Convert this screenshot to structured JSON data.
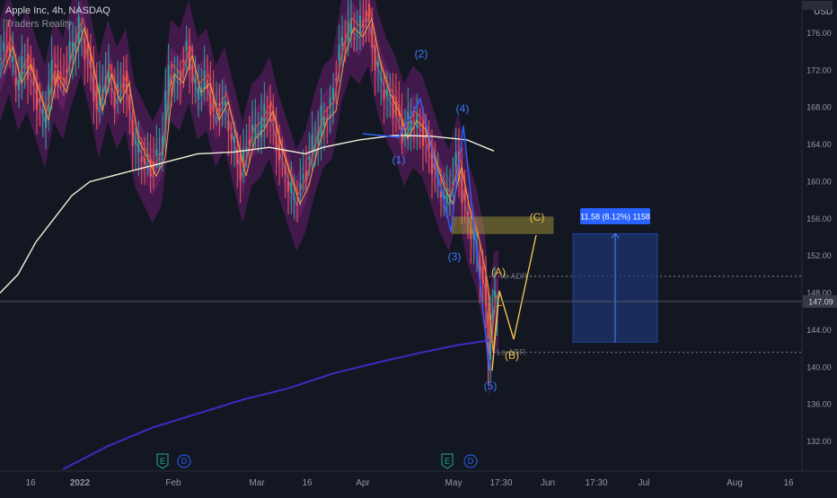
{
  "header": {
    "symbol_line": "Apple Inc, 4h, NASDAQ",
    "indicator": "Traders Reality"
  },
  "axis": {
    "currency": "USD"
  },
  "chart_data": {
    "type": "line",
    "title": "Apple Inc, 4h, NASDAQ",
    "xlabel": "",
    "ylabel": "",
    "ylim": [
      128.5,
      180.5
    ],
    "grid": false,
    "y_ticks": [
      132.0,
      136.0,
      140.0,
      144.0,
      148.0,
      152.0,
      156.0,
      160.0,
      164.0,
      168.0,
      172.0,
      176.0
    ],
    "x_ticks": [
      "16",
      "2022",
      "Feb",
      "Mar",
      "16",
      "Apr",
      "May",
      "17:30",
      "Jun",
      "17:30",
      "Jul",
      "Aug",
      "16"
    ],
    "last_price": "147.09",
    "series": [
      {
        "name": "",
        "note": "price close (approx.)",
        "values": [
          [
            0,
            172
          ],
          [
            10,
            175
          ],
          [
            20,
            171
          ],
          [
            30,
            173
          ],
          [
            40,
            170
          ],
          [
            50,
            167
          ],
          [
            60,
            172
          ],
          [
            70,
            170
          ],
          [
            80,
            174
          ],
          [
            90,
            177
          ],
          [
            100,
            173
          ],
          [
            110,
            168
          ],
          [
            120,
            172
          ],
          [
            130,
            169
          ],
          [
            140,
            171
          ],
          [
            150,
            165
          ],
          [
            160,
            163
          ],
          [
            170,
            161
          ],
          [
            180,
            163
          ],
          [
            190,
            172
          ],
          [
            200,
            171
          ],
          [
            210,
            174
          ],
          [
            220,
            170
          ],
          [
            230,
            171
          ],
          [
            240,
            167
          ],
          [
            250,
            169
          ],
          [
            260,
            165
          ],
          [
            270,
            161
          ],
          [
            280,
            165
          ],
          [
            290,
            166
          ],
          [
            300,
            168
          ],
          [
            310,
            164
          ],
          [
            320,
            161
          ],
          [
            330,
            158
          ],
          [
            340,
            160
          ],
          [
            350,
            164
          ],
          [
            360,
            167
          ],
          [
            370,
            168
          ],
          [
            380,
            174
          ],
          [
            390,
            177
          ],
          [
            400,
            176
          ],
          [
            410,
            178
          ],
          [
            420,
            173
          ],
          [
            430,
            170
          ],
          [
            440,
            168
          ],
          [
            450,
            165
          ],
          [
            460,
            167
          ],
          [
            470,
            166
          ],
          [
            480,
            163
          ],
          [
            490,
            160
          ],
          [
            500,
            158
          ],
          [
            510,
            162
          ],
          [
            520,
            157
          ],
          [
            530,
            154
          ],
          [
            540,
            149
          ],
          [
            545,
            142
          ],
          [
            550,
            147
          ],
          [
            555,
            147.09
          ]
        ]
      },
      {
        "name": "",
        "note": "moving average (pale)",
        "values": [
          [
            0,
            148
          ],
          [
            20,
            150
          ],
          [
            40,
            153.5
          ],
          [
            60,
            156
          ],
          [
            80,
            158.5
          ],
          [
            100,
            160
          ],
          [
            140,
            161
          ],
          [
            180,
            162
          ],
          [
            220,
            163
          ],
          [
            260,
            163.2
          ],
          [
            300,
            163.7
          ],
          [
            340,
            163
          ],
          [
            360,
            163.7
          ],
          [
            400,
            164.5
          ],
          [
            440,
            165
          ],
          [
            480,
            164.9
          ],
          [
            520,
            164.5
          ],
          [
            550,
            163.3
          ]
        ]
      },
      {
        "name": "",
        "note": "long moving average (purple)",
        "values": [
          [
            70,
            129
          ],
          [
            120,
            131.5
          ],
          [
            170,
            133.5
          ],
          [
            220,
            135
          ],
          [
            270,
            136.5
          ],
          [
            320,
            137.7
          ],
          [
            370,
            139.3
          ],
          [
            420,
            140.5
          ],
          [
            470,
            141.6
          ],
          [
            510,
            142.4
          ],
          [
            545,
            142.9
          ]
        ]
      }
    ],
    "elliott_labels": [
      "(1)",
      "(2)",
      "(3)",
      "(4)",
      "(5)"
    ],
    "abc_labels": [
      "(A)",
      "(B)",
      "(C)"
    ],
    "level_labels": [
      "Hi-ADR",
      "Lo-ADR"
    ],
    "levels": [
      149.8,
      141.6
    ],
    "projection_label": "11.58 (8.12%) 1158",
    "projection_range": [
      142.7,
      154.4
    ],
    "zone_range": [
      154.4,
      156.2
    ],
    "events": [
      "E",
      "D",
      "E",
      "D"
    ]
  },
  "colors": {
    "background": "#131722",
    "wave": "#2962ff",
    "abc": "#f0c24f",
    "ema_band": "#6a1b6e",
    "sma_white": "#f2f0d9",
    "sma_long": "#3f2ac2",
    "box": "#1f3a78",
    "price_label": "#363a45"
  }
}
